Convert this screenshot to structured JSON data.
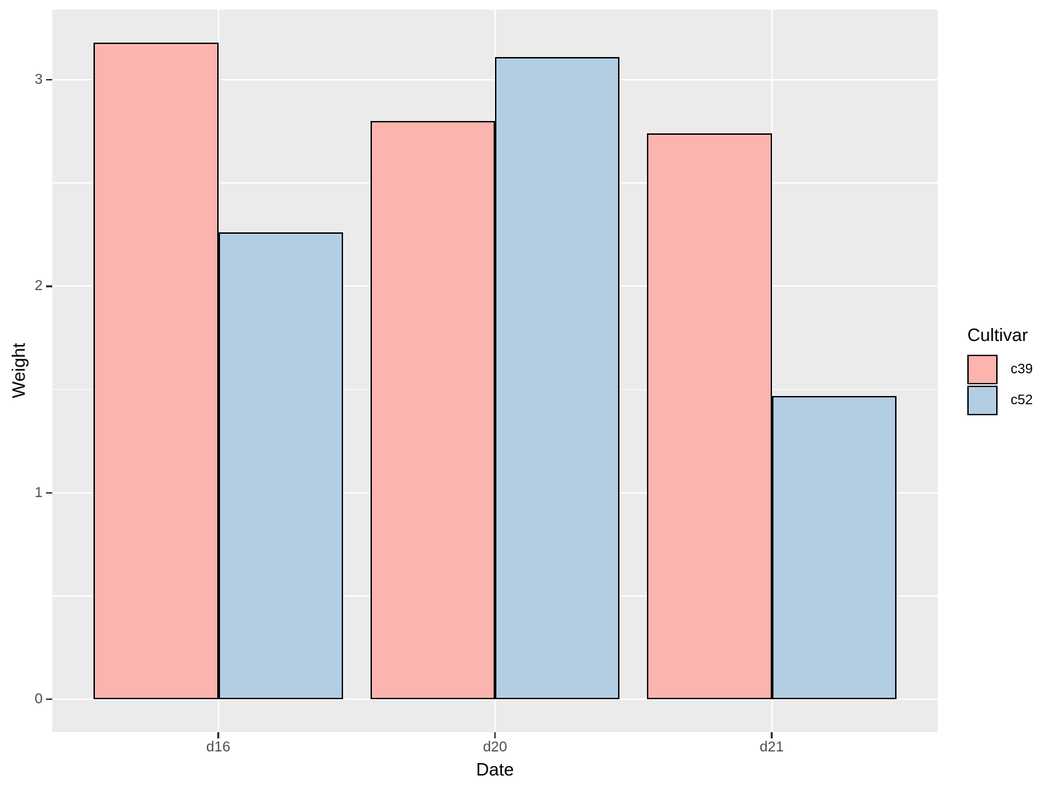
{
  "chart_data": {
    "type": "bar",
    "title": "",
    "xlabel": "Date",
    "ylabel": "Weight",
    "categories": [
      "d16",
      "d20",
      "d21"
    ],
    "series": [
      {
        "name": "c39",
        "color": "#FBB4AE",
        "values": [
          3.18,
          2.8,
          2.74
        ]
      },
      {
        "name": "c52",
        "color": "#B3CDE3",
        "values": [
          2.26,
          3.11,
          1.47
        ]
      }
    ],
    "legend": {
      "title": "Cultivar",
      "position": "right-center"
    },
    "y_axis": {
      "ticks": [
        0,
        1,
        2,
        3
      ],
      "minor_ticks": [
        0.5,
        1.5,
        2.5
      ],
      "range_expanded": [
        -0.159,
        3.339
      ]
    },
    "x_axis": {
      "slot_units": 3.2,
      "first_center_unit": 0.6,
      "bar_width_unit": 0.45
    },
    "style": {
      "background": "#FFFFFF",
      "panel_bg": "#EBEBEB",
      "grid_color": "#FFFFFF",
      "bar_border": "#000000",
      "axis_text_color": "#4D4D4D",
      "tick_color": "#333333",
      "title_color": "#000000"
    }
  }
}
